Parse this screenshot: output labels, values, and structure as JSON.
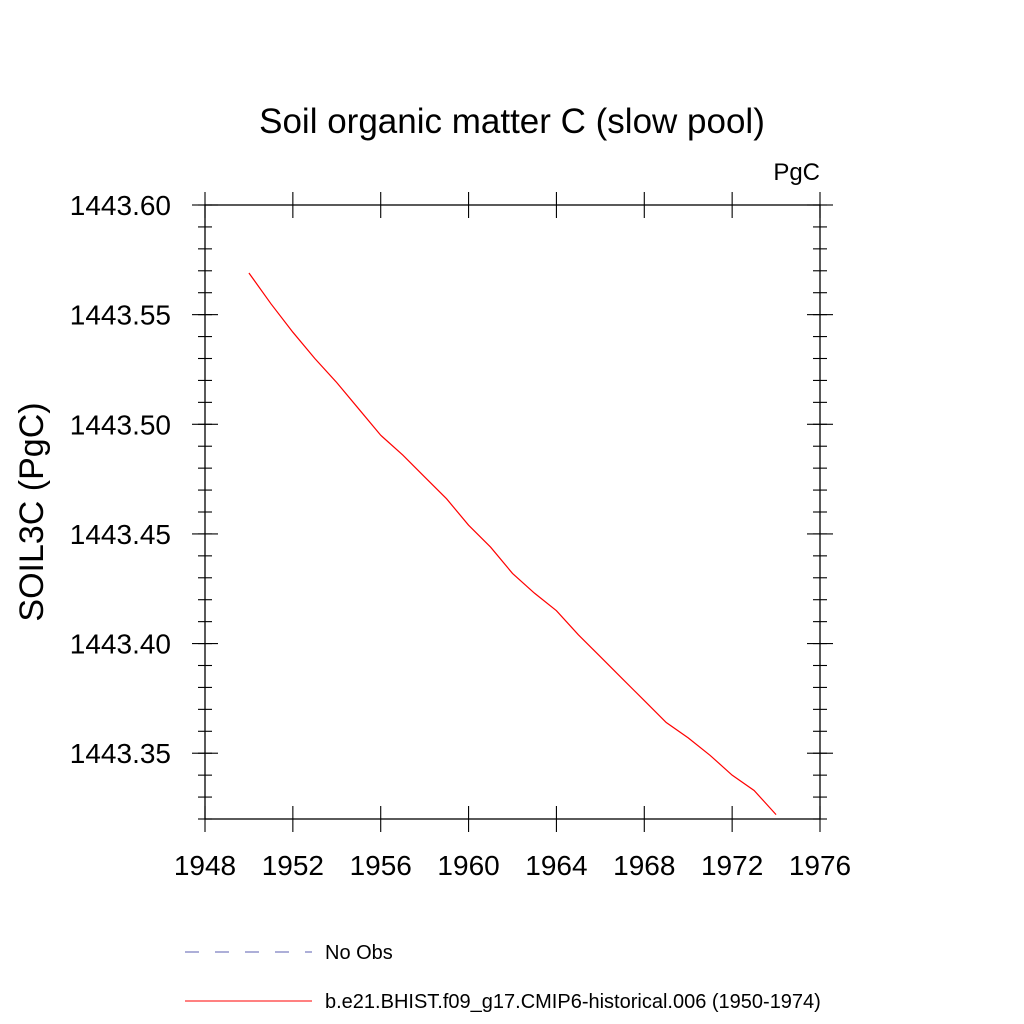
{
  "chart_data": {
    "type": "line",
    "title": "Soil organic matter C (slow pool)",
    "units": "PgC",
    "xlabel": "",
    "ylabel": "SOIL3C  (PgC)",
    "xlim": [
      1948,
      1976
    ],
    "ylim": [
      1443.32,
      1443.6
    ],
    "xticks": [
      "1948",
      "1952",
      "1956",
      "1960",
      "1964",
      "1968",
      "1972",
      "1976"
    ],
    "yticks": [
      "1443.35",
      "1443.40",
      "1443.45",
      "1443.50",
      "1443.55",
      "1443.60"
    ],
    "grid": false,
    "legend_position": "bottom",
    "series": [
      {
        "name": "No Obs",
        "color": "#5b5fb0",
        "style": "dashed",
        "x": [],
        "y": []
      },
      {
        "name": "b.e21.BHIST.f09_g17.CMIP6-historical.006 (1950-1974)",
        "color": "#ff0000",
        "style": "solid",
        "x": [
          1950,
          1951,
          1952,
          1953,
          1954,
          1955,
          1956,
          1957,
          1958,
          1959,
          1960,
          1961,
          1962,
          1963,
          1964,
          1965,
          1966,
          1967,
          1968,
          1969,
          1970,
          1971,
          1972,
          1973,
          1974
        ],
        "y": [
          1443.569,
          1443.555,
          1443.542,
          1443.53,
          1443.519,
          1443.507,
          1443.495,
          1443.486,
          1443.476,
          1443.466,
          1443.454,
          1443.444,
          1443.432,
          1443.423,
          1443.415,
          1443.404,
          1443.394,
          1443.384,
          1443.374,
          1443.364,
          1443.357,
          1443.349,
          1443.34,
          1443.333,
          1443.322
        ]
      }
    ]
  }
}
